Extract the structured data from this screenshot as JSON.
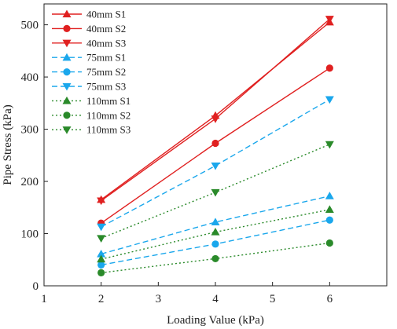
{
  "chart_data": {
    "type": "line",
    "xlabel": "Loading Value (kPa)",
    "ylabel": "Pipe Stress (kPa)",
    "xlim": [
      1,
      7
    ],
    "ylim": [
      0,
      540
    ],
    "xticks": [
      1,
      2,
      3,
      4,
      5,
      6
    ],
    "yticks": [
      0,
      100,
      200,
      300,
      400,
      500
    ],
    "grid": false,
    "legend_position": "top-left",
    "x": [
      2,
      4,
      6
    ],
    "series": [
      {
        "name": "40mm S1",
        "values": [
          165,
          326,
          505
        ],
        "color": "#e02020",
        "dash": "solid",
        "marker": "triangle-up"
      },
      {
        "name": "40mm S2",
        "values": [
          120,
          273,
          417
        ],
        "color": "#e02020",
        "dash": "solid",
        "marker": "circle"
      },
      {
        "name": "40mm S3",
        "values": [
          163,
          320,
          511
        ],
        "color": "#e02020",
        "dash": "solid",
        "marker": "triangle-down"
      },
      {
        "name": "75mm S1",
        "values": [
          61,
          122,
          172
        ],
        "color": "#1aa7ec",
        "dash": "dashed",
        "marker": "triangle-up"
      },
      {
        "name": "75mm S2",
        "values": [
          40,
          80,
          126
        ],
        "color": "#1aa7ec",
        "dash": "dashed",
        "marker": "circle"
      },
      {
        "name": "75mm S3",
        "values": [
          113,
          230,
          357
        ],
        "color": "#1aa7ec",
        "dash": "dashed",
        "marker": "triangle-down"
      },
      {
        "name": "110mm S1",
        "values": [
          51,
          103,
          146
        ],
        "color": "#2a8a2a",
        "dash": "dotted",
        "marker": "triangle-up"
      },
      {
        "name": "110mm S2",
        "values": [
          25,
          52,
          82
        ],
        "color": "#2a8a2a",
        "dash": "dotted",
        "marker": "circle"
      },
      {
        "name": "110mm S3",
        "values": [
          91,
          179,
          271
        ],
        "color": "#2a8a2a",
        "dash": "dotted",
        "marker": "triangle-down"
      }
    ]
  }
}
